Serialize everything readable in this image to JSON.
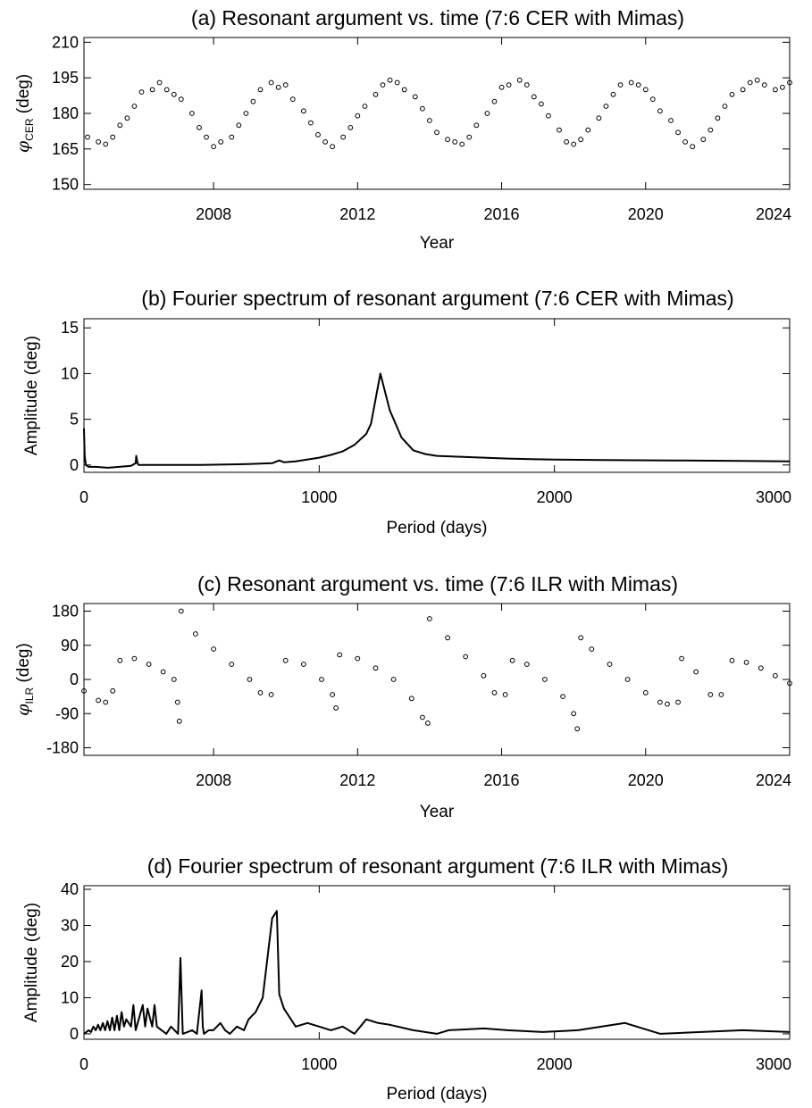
{
  "panels": [
    {
      "title": "(a) Resonant argument vs. time (7:6 CER with Mimas)",
      "xlabel": "Year",
      "ylabel_symbol": "φ",
      "ylabel_sub": "CER",
      "ylabel_rest": " (deg)",
      "xticks": [
        "2008",
        "2012",
        "2016",
        "2020",
        "2024"
      ],
      "yticks": [
        "150",
        "165",
        "180",
        "195",
        "210"
      ]
    },
    {
      "title": "(b) Fourier spectrum of resonant argument (7:6 CER with Mimas)",
      "xlabel": "Period (days)",
      "ylabel": "Amplitude (deg)",
      "xticks": [
        "0",
        "1000",
        "2000",
        "3000"
      ],
      "yticks": [
        "0",
        "5",
        "10",
        "15"
      ]
    },
    {
      "title": "(c) Resonant argument vs. time (7:6 ILR with Mimas)",
      "xlabel": "Year",
      "ylabel_symbol": "φ",
      "ylabel_sub": "ILR",
      "ylabel_rest": " (deg)",
      "xticks": [
        "2008",
        "2012",
        "2016",
        "2020",
        "2024"
      ],
      "yticks": [
        "-180",
        "-90",
        "0",
        "90",
        "180"
      ]
    },
    {
      "title": "(d) Fourier spectrum of resonant argument (7:6 ILR with Mimas)",
      "xlabel": "Period (days)",
      "ylabel": "Amplitude (deg)",
      "xticks": [
        "0",
        "1000",
        "2000",
        "3000"
      ],
      "yticks": [
        "0",
        "10",
        "20",
        "30",
        "40"
      ]
    }
  ],
  "chart_data": [
    {
      "type": "scatter",
      "title": "(a) Resonant argument vs. time (7:6 CER with Mimas)",
      "xlabel": "Year",
      "ylabel": "φCER (deg)",
      "xlim": [
        2004.4,
        2024.0
      ],
      "ylim": [
        148,
        212
      ],
      "xticks": [
        2008,
        2012,
        2016,
        2020,
        2024
      ],
      "yticks": [
        150,
        165,
        180,
        195,
        210
      ],
      "series": [
        {
          "x": [
            2004.5,
            2004.8,
            2005.0,
            2005.2,
            2005.4,
            2005.6,
            2005.8,
            2006.0,
            2006.3,
            2006.5,
            2006.7,
            2006.9,
            2007.1,
            2007.4,
            2007.6,
            2007.8,
            2008.0,
            2008.2,
            2008.5,
            2008.7,
            2008.9,
            2009.1,
            2009.3,
            2009.6,
            2009.8,
            2010.0,
            2010.2,
            2010.5,
            2010.7,
            2010.9,
            2011.1,
            2011.3,
            2011.6,
            2011.8,
            2012.0,
            2012.2,
            2012.5,
            2012.7,
            2012.9,
            2013.1,
            2013.3,
            2013.6,
            2013.8,
            2014.0,
            2014.2,
            2014.5,
            2014.7,
            2014.9,
            2015.1,
            2015.3,
            2015.6,
            2015.8,
            2016.0,
            2016.2,
            2016.5,
            2016.7,
            2016.9,
            2017.1,
            2017.3,
            2017.6,
            2017.8,
            2018.0,
            2018.2,
            2018.4,
            2018.7,
            2018.9,
            2019.1,
            2019.3,
            2019.6,
            2019.8,
            2020.0,
            2020.2,
            2020.4,
            2020.7,
            2020.9,
            2021.1,
            2021.3,
            2021.6,
            2021.8,
            2022.0,
            2022.2,
            2022.4,
            2022.7,
            2022.9,
            2023.1,
            2023.3,
            2023.6,
            2023.8,
            2024.0
          ],
          "y": [
            170,
            168,
            167,
            170,
            175,
            178,
            183,
            189,
            190,
            193,
            190,
            188,
            186,
            180,
            174,
            170,
            166,
            168,
            170,
            175,
            180,
            185,
            190,
            193,
            191,
            192,
            186,
            181,
            176,
            171,
            168,
            166,
            170,
            174,
            179,
            183,
            188,
            192,
            194,
            193,
            190,
            187,
            182,
            177,
            172,
            169,
            168,
            167,
            170,
            175,
            180,
            185,
            191,
            192,
            194,
            192,
            187,
            184,
            179,
            173,
            168,
            167,
            169,
            173,
            178,
            183,
            188,
            192,
            193,
            192,
            190,
            186,
            181,
            177,
            172,
            168,
            166,
            169,
            173,
            178,
            183,
            188,
            190,
            193,
            194,
            192,
            190,
            191,
            193
          ]
        }
      ]
    },
    {
      "type": "line",
      "title": "(b) Fourier spectrum of resonant argument (7:6 CER with Mimas)",
      "xlabel": "Period (days)",
      "ylabel": "Amplitude (deg)",
      "xlim": [
        0,
        3000
      ],
      "ylim": [
        -0.8,
        16
      ],
      "xticks": [
        0,
        1000,
        2000,
        3000
      ],
      "yticks": [
        0,
        5,
        10,
        15
      ],
      "series": [
        {
          "x": [
            0,
            3,
            8,
            20,
            50,
            100,
            150,
            200,
            220,
            222,
            228,
            232,
            300,
            400,
            500,
            600,
            700,
            800,
            830,
            850,
            900,
            1000,
            1050,
            1100,
            1150,
            1200,
            1220,
            1260,
            1300,
            1350,
            1400,
            1450,
            1500,
            1600,
            1700,
            1800,
            1900,
            2000,
            2200,
            2500,
            2800,
            3000
          ],
          "y": [
            4.0,
            1.0,
            0.0,
            -0.2,
            -0.2,
            -0.3,
            -0.2,
            -0.1,
            0.2,
            1.0,
            0.2,
            0.0,
            0.0,
            0.0,
            0.0,
            0.05,
            0.1,
            0.2,
            0.5,
            0.3,
            0.4,
            0.8,
            1.1,
            1.5,
            2.2,
            3.4,
            4.5,
            10.0,
            6.0,
            3.0,
            1.6,
            1.2,
            1.0,
            0.9,
            0.8,
            0.7,
            0.65,
            0.6,
            0.55,
            0.5,
            0.45,
            0.4
          ]
        }
      ]
    },
    {
      "type": "scatter",
      "title": "(c) Resonant argument vs. time (7:6 ILR with Mimas)",
      "xlabel": "Year",
      "ylabel": "φILR (deg)",
      "xlim": [
        2004.4,
        2024.0
      ],
      "ylim": [
        -200,
        200
      ],
      "xticks": [
        2008,
        2012,
        2016,
        2020,
        2024
      ],
      "yticks": [
        -180,
        -90,
        0,
        90,
        180
      ],
      "series": [
        {
          "x": [
            2004.4,
            2004.8,
            2005.0,
            2005.2,
            2005.4,
            2005.8,
            2006.2,
            2006.6,
            2006.9,
            2007.0,
            2007.05,
            2007.1,
            2007.5,
            2008.0,
            2008.5,
            2009.0,
            2009.3,
            2009.6,
            2010.0,
            2010.5,
            2011.0,
            2011.3,
            2011.4,
            2011.5,
            2012.0,
            2012.5,
            2013.0,
            2013.5,
            2013.8,
            2013.95,
            2014.0,
            2014.5,
            2015.0,
            2015.5,
            2015.8,
            2016.1,
            2016.3,
            2016.7,
            2017.2,
            2017.7,
            2018.0,
            2018.1,
            2018.2,
            2018.5,
            2019.0,
            2019.5,
            2020.0,
            2020.4,
            2020.6,
            2020.9,
            2021.0,
            2021.4,
            2021.8,
            2022.1,
            2022.4,
            2022.8,
            2023.2,
            2023.6,
            2024.0
          ],
          "y": [
            -30,
            -55,
            -60,
            -30,
            50,
            55,
            40,
            20,
            0,
            -60,
            -110,
            180,
            120,
            80,
            40,
            0,
            -35,
            -40,
            50,
            40,
            0,
            -40,
            -75,
            65,
            55,
            30,
            0,
            -50,
            -100,
            -115,
            160,
            110,
            60,
            10,
            -35,
            -40,
            50,
            40,
            0,
            -45,
            -90,
            -130,
            110,
            80,
            40,
            0,
            -35,
            -60,
            -65,
            -60,
            55,
            20,
            -40,
            -40,
            50,
            45,
            30,
            10,
            -10
          ]
        }
      ]
    },
    {
      "type": "line",
      "title": "(d) Fourier spectrum of resonant argument (7:6 ILR with Mimas)",
      "xlabel": "Period (days)",
      "ylabel": "Amplitude (deg)",
      "xlim": [
        0,
        3000
      ],
      "ylim": [
        -1.5,
        41
      ],
      "xticks": [
        0,
        1000,
        2000,
        3000
      ],
      "yticks": [
        0,
        10,
        20,
        30,
        40
      ],
      "series": [
        {
          "x": [
            0,
            20,
            30,
            40,
            50,
            60,
            70,
            80,
            90,
            100,
            110,
            120,
            130,
            140,
            150,
            160,
            170,
            180,
            200,
            210,
            220,
            250,
            260,
            270,
            290,
            300,
            310,
            330,
            350,
            370,
            400,
            410,
            420,
            440,
            460,
            480,
            500,
            505,
            510,
            530,
            550,
            580,
            600,
            620,
            650,
            680,
            700,
            730,
            760,
            800,
            820,
            830,
            850,
            870,
            900,
            950,
            1000,
            1050,
            1100,
            1150,
            1200,
            1250,
            1300,
            1400,
            1500,
            1550,
            1700,
            1800,
            1950,
            2100,
            2300,
            2450,
            2800,
            3000
          ],
          "y": [
            0,
            1,
            0.5,
            2,
            1,
            2.5,
            1,
            3,
            1,
            3.5,
            1,
            4.5,
            1,
            5,
            1,
            6,
            2,
            4,
            2,
            8,
            1,
            8,
            2,
            7,
            2,
            8,
            2,
            1,
            0,
            2,
            0,
            21,
            0,
            0.5,
            1,
            0,
            12,
            2,
            0,
            1,
            1,
            3,
            1,
            0,
            2,
            1,
            4,
            6,
            10,
            32,
            34,
            11,
            7,
            5,
            2,
            3,
            2,
            1,
            2,
            0,
            4,
            3,
            2.5,
            1,
            0,
            1,
            1.5,
            1,
            0.5,
            1,
            3,
            0,
            1,
            0.5
          ]
        }
      ]
    }
  ]
}
